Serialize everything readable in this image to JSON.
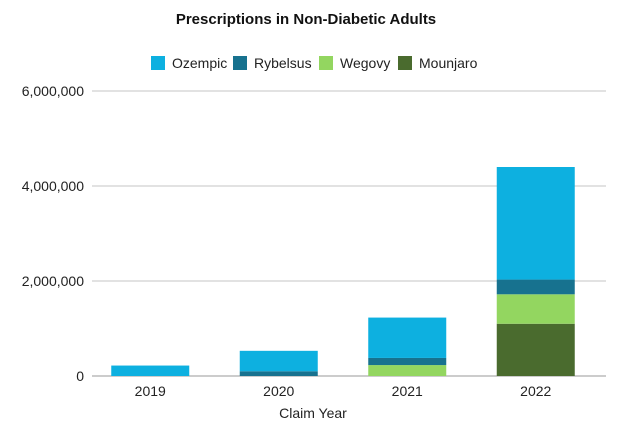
{
  "chart_data": {
    "type": "bar",
    "stacked": true,
    "title": "Prescriptions in Non-Diabetic Adults",
    "xlabel": "Claim Year",
    "ylabel": "",
    "categories": [
      "2019",
      "2020",
      "2021",
      "2022"
    ],
    "ylim": [
      0,
      6000000
    ],
    "yticks": [
      0,
      2000000,
      4000000,
      6000000
    ],
    "ytick_labels": [
      "0",
      "2,000,000",
      "4,000,000",
      "6,000,000"
    ],
    "grid": true,
    "legend_position": "top-center",
    "series": [
      {
        "name": "Mounjaro",
        "color": "#4a6b2e",
        "values": [
          0,
          0,
          0,
          1100000
        ]
      },
      {
        "name": "Wegovy",
        "color": "#93d660",
        "values": [
          0,
          0,
          230000,
          620000
        ]
      },
      {
        "name": "Rybelsus",
        "color": "#17728f",
        "values": [
          0,
          100000,
          150000,
          310000
        ]
      },
      {
        "name": "Ozempic",
        "color": "#0db0e0",
        "values": [
          220000,
          430000,
          850000,
          2370000
        ]
      }
    ],
    "legend_order": [
      "Ozempic",
      "Rybelsus",
      "Wegovy",
      "Mounjaro"
    ]
  }
}
